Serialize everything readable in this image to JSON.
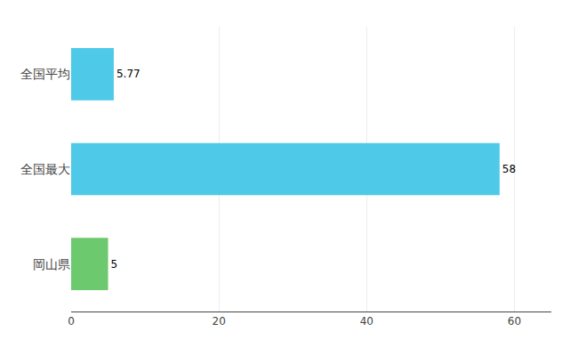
{
  "chart_data": {
    "type": "bar",
    "orientation": "horizontal",
    "categories": [
      "全国平均",
      "全国最大",
      "岡山県"
    ],
    "values": [
      5.77,
      58,
      5
    ],
    "colors": [
      "#4EC9E8",
      "#4EC9E8",
      "#6DC96D"
    ],
    "xlim": [
      0,
      65
    ],
    "xticks": [
      0,
      20,
      40,
      60
    ],
    "grid": true,
    "data_labels": true
  }
}
